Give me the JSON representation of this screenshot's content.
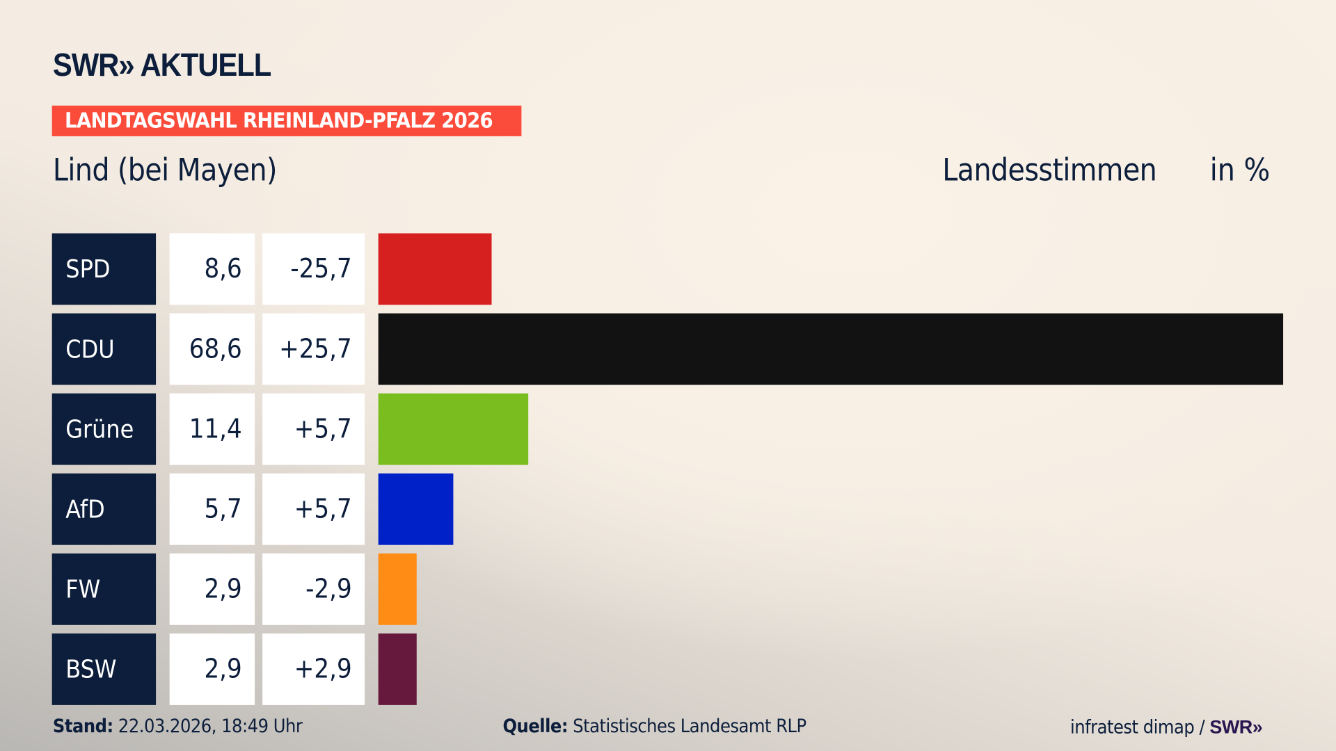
{
  "logo": "SWR» AKTUELL",
  "banner": "LANDTAGSWAHL RHEINLAND-PFALZ 2026",
  "place": "Lind (bei Mayen)",
  "vote_type": "Landesstimmen",
  "unit": "in %",
  "chart_data": {
    "type": "bar",
    "title": "Lind (bei Mayen) – Landesstimmen in %",
    "categories": [
      "SPD",
      "CDU",
      "Grüne",
      "AfD",
      "FW",
      "BSW"
    ],
    "values": [
      8.6,
      68.6,
      11.4,
      5.7,
      2.9,
      2.9
    ],
    "labels": [
      "8,6",
      "68,6",
      "11,4",
      "5,7",
      "2,9",
      "2,9"
    ],
    "diffs": [
      "-25,7",
      "+25,7",
      "+5,7",
      "+5,7",
      "-2,9",
      "+2,9"
    ],
    "colors": [
      "#d61f1f",
      "#121212",
      "#7abd1e",
      "#0021c8",
      "#ff8c14",
      "#66193c"
    ],
    "xlim": [
      0,
      68.6
    ]
  },
  "footer": {
    "stand_label": "Stand:",
    "stand_value": "22.03.2026, 18:49 Uhr",
    "source_label": "Quelle:",
    "source_value": "Statistisches Landesamt RLP",
    "credit": "infratest dimap /",
    "credit_logo": "SWR»"
  }
}
